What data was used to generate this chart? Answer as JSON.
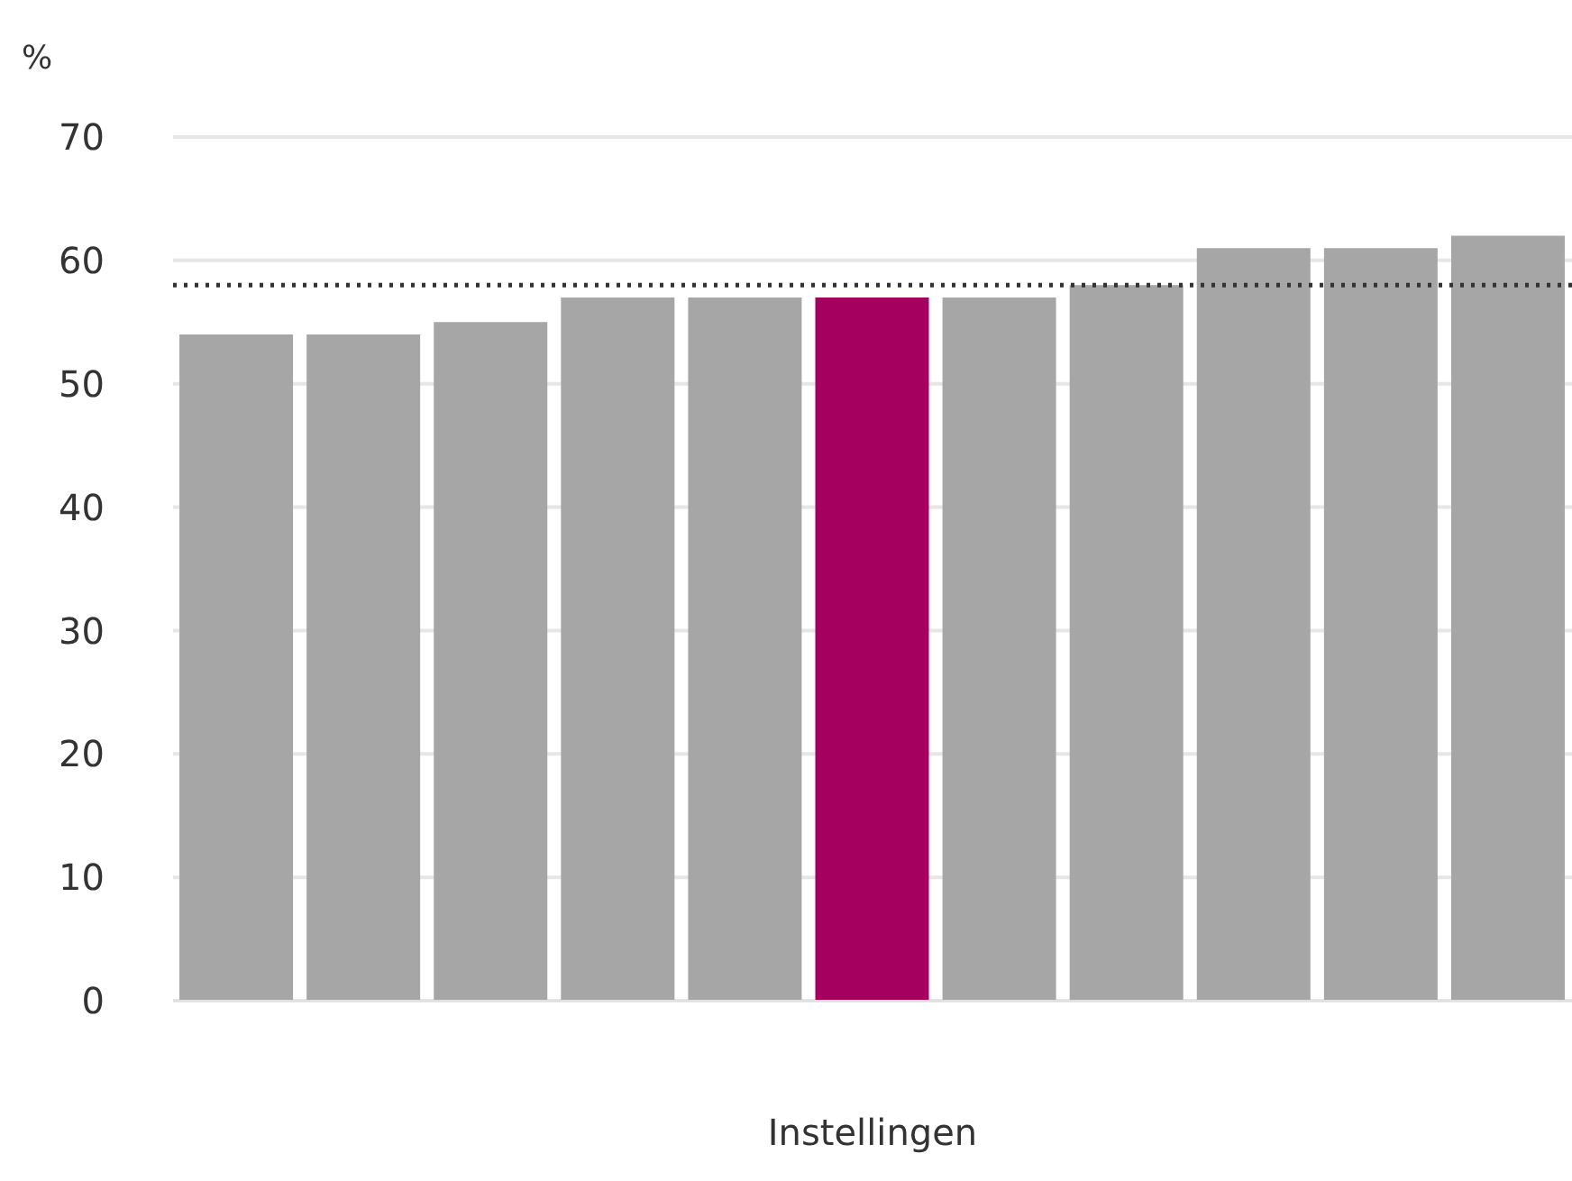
{
  "chart_data": {
    "type": "bar",
    "ylabel": "%",
    "xlabel": "Instellingen",
    "categories": [
      null,
      null,
      null,
      null,
      null,
      null,
      null,
      null,
      null,
      null,
      null
    ],
    "values": [
      54,
      54,
      55,
      57,
      57,
      57,
      57,
      58,
      61,
      61,
      62
    ],
    "colors": [
      "#a6a6a6",
      "#a6a6a6",
      "#a6a6a6",
      "#a6a6a6",
      "#a6a6a6",
      "#a50060",
      "#a6a6a6",
      "#a6a6a6",
      "#a6a6a6",
      "#a6a6a6",
      "#a6a6a6"
    ],
    "ylim": [
      0,
      70
    ],
    "yticks": [
      0,
      10,
      20,
      30,
      40,
      50,
      60,
      70
    ],
    "ref_lines": [
      {
        "axis": "y",
        "value": 58,
        "color": "#333333",
        "line_style": "dotted"
      }
    ],
    "grid": "y",
    "tick_labels": "y"
  }
}
